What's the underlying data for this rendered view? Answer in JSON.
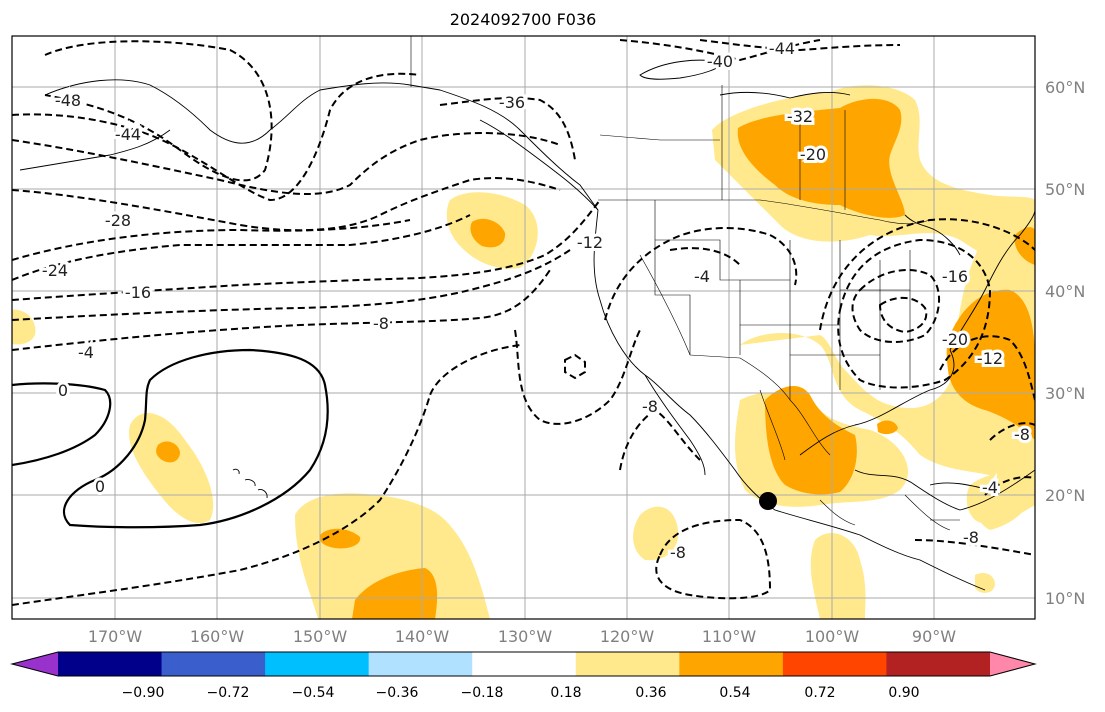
{
  "title": "2024092700 F036",
  "lon_labels": [
    "170°W",
    "160°W",
    "150°W",
    "140°W",
    "130°W",
    "120°W",
    "110°W",
    "100°W",
    "90°W"
  ],
  "lat_labels": [
    "60°N",
    "50°N",
    "40°N",
    "30°N",
    "20°N",
    "10°N"
  ],
  "contour_labels": [
    "-48",
    "-44",
    "-40",
    "-44",
    "-36",
    "-32",
    "-28",
    "-24",
    "-20",
    "-16",
    "-12",
    "-8",
    "-4",
    "0",
    "0",
    "-4",
    "-8",
    "-8",
    "-16",
    "-20",
    "-12",
    "-8",
    "-4",
    "-8"
  ],
  "colorbar": {
    "ticks": [
      "−0.90",
      "−0.72",
      "−0.54",
      "−0.36",
      "−0.18",
      "0.18",
      "0.36",
      "0.54",
      "0.72",
      "0.90"
    ],
    "colors": [
      "#9932cc",
      "#00008b",
      "#3a5fcd",
      "#00bfff",
      "#b0e2ff",
      "#ffffff",
      "#ffe98c",
      "#ffa500",
      "#ff4500",
      "#b22222",
      "#ff88aa"
    ]
  },
  "colors": {
    "shade_light": "#ffe98c",
    "shade_mid": "#ffa500",
    "grid": "#aaaaaa",
    "contour": "#000000",
    "tick_text": "#808080"
  }
}
